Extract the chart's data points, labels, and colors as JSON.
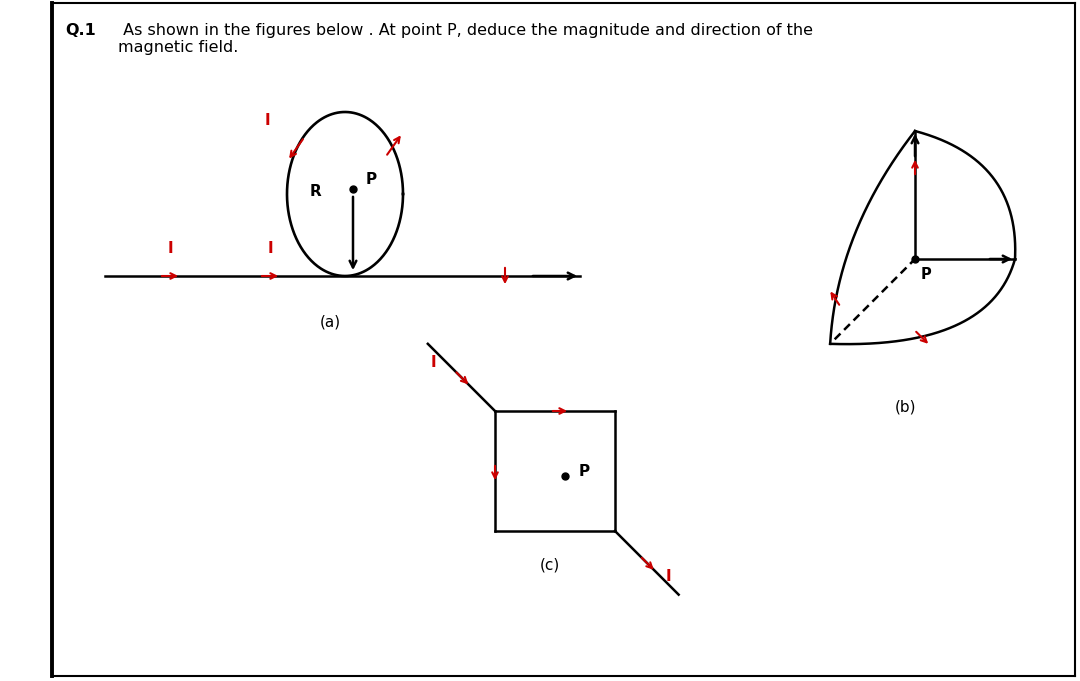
{
  "title_bold": "Q.1",
  "title_rest": " As shown in the figures below . At point P, deduce the magnitude and direction of the\nmagnetic field.",
  "bg_color": "#ffffff",
  "label_a": "(a)",
  "label_b": "(b)",
  "label_c": "(c)",
  "ac": "#cc0000",
  "lc": "#000000",
  "fig_w": 10.8,
  "fig_h": 6.81,
  "dpi": 100
}
